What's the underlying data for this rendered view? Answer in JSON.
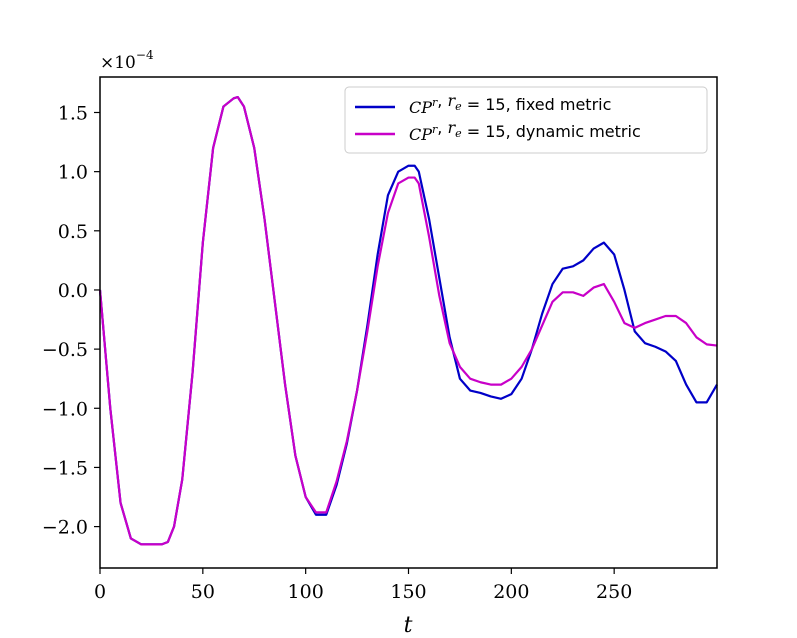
{
  "chart_data": {
    "type": "line",
    "xlabel": "t",
    "ylabel": "",
    "title": "",
    "xlim": [
      0,
      300
    ],
    "ylim": [
      -2.35,
      1.8
    ],
    "xticks": [
      0,
      50,
      100,
      150,
      200,
      250
    ],
    "yticks": [
      -2.0,
      -1.5,
      -1.0,
      -0.5,
      0.0,
      0.5,
      1.0,
      1.5
    ],
    "y_offset_label": "×10^−4",
    "grid": false,
    "legend_position": "top-right",
    "series": [
      {
        "name": "CP^r, r_e = 15, fixed metric",
        "legend_math": "CP",
        "legend_sup": "r",
        "legend_mid": ", ",
        "legend_sub_var": "r",
        "legend_sub": "e",
        "legend_eq": " = 15",
        "legend_tail": ", fixed metric",
        "color": "#0000c8",
        "x": [
          0,
          5,
          10,
          15,
          20,
          25,
          30,
          33,
          36,
          40,
          45,
          50,
          55,
          60,
          65,
          67,
          70,
          75,
          80,
          85,
          90,
          95,
          100,
          105,
          110,
          115,
          120,
          125,
          130,
          135,
          140,
          145,
          150,
          153,
          155,
          160,
          165,
          170,
          175,
          180,
          185,
          190,
          195,
          200,
          205,
          210,
          215,
          220,
          225,
          230,
          235,
          240,
          245,
          250,
          255,
          260,
          265,
          270,
          275,
          280,
          285,
          290,
          295,
          300
        ],
        "y": [
          0.0,
          -1.0,
          -1.8,
          -2.1,
          -2.15,
          -2.15,
          -2.15,
          -2.13,
          -2.0,
          -1.6,
          -0.7,
          0.4,
          1.2,
          1.55,
          1.62,
          1.63,
          1.55,
          1.2,
          0.6,
          -0.1,
          -0.8,
          -1.4,
          -1.75,
          -1.9,
          -1.9,
          -1.65,
          -1.3,
          -0.85,
          -0.3,
          0.3,
          0.8,
          1.0,
          1.05,
          1.05,
          1.0,
          0.6,
          0.1,
          -0.4,
          -0.75,
          -0.85,
          -0.87,
          -0.9,
          -0.92,
          -0.88,
          -0.75,
          -0.5,
          -0.2,
          0.05,
          0.18,
          0.2,
          0.25,
          0.35,
          0.4,
          0.3,
          0.0,
          -0.35,
          -0.45,
          -0.48,
          -0.52,
          -0.6,
          -0.8,
          -0.95,
          -0.95,
          -0.8
        ]
      },
      {
        "name": "CP^r, r_e = 15, dynamic metric",
        "legend_math": "CP",
        "legend_sup": "r",
        "legend_mid": ", ",
        "legend_sub_var": "r",
        "legend_sub": "e",
        "legend_eq": " = 15",
        "legend_tail": ", dynamic metric",
        "color": "#c800c8",
        "x": [
          0,
          5,
          10,
          15,
          20,
          25,
          30,
          33,
          36,
          40,
          45,
          50,
          55,
          60,
          65,
          67,
          70,
          75,
          80,
          85,
          90,
          95,
          100,
          105,
          110,
          115,
          120,
          125,
          130,
          135,
          140,
          145,
          150,
          153,
          155,
          160,
          165,
          170,
          175,
          180,
          185,
          190,
          195,
          200,
          205,
          210,
          215,
          220,
          225,
          230,
          235,
          240,
          245,
          250,
          255,
          260,
          265,
          270,
          275,
          280,
          285,
          290,
          295,
          300
        ],
        "y": [
          0.0,
          -1.0,
          -1.8,
          -2.1,
          -2.15,
          -2.15,
          -2.15,
          -2.13,
          -2.0,
          -1.6,
          -0.7,
          0.4,
          1.2,
          1.55,
          1.62,
          1.63,
          1.55,
          1.2,
          0.6,
          -0.1,
          -0.8,
          -1.4,
          -1.75,
          -1.88,
          -1.88,
          -1.62,
          -1.28,
          -0.85,
          -0.35,
          0.2,
          0.65,
          0.9,
          0.95,
          0.95,
          0.9,
          0.45,
          -0.05,
          -0.45,
          -0.65,
          -0.75,
          -0.78,
          -0.8,
          -0.8,
          -0.75,
          -0.65,
          -0.5,
          -0.3,
          -0.1,
          -0.02,
          -0.02,
          -0.05,
          0.02,
          0.05,
          -0.1,
          -0.28,
          -0.32,
          -0.28,
          -0.25,
          -0.22,
          -0.22,
          -0.28,
          -0.4,
          -0.46,
          -0.47
        ]
      }
    ]
  }
}
